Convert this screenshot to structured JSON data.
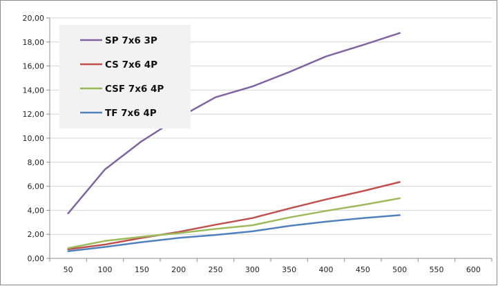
{
  "chart_data": {
    "type": "line",
    "title": "",
    "xlabel": "",
    "ylabel": "",
    "x": [
      50,
      100,
      150,
      200,
      250,
      300,
      350,
      400,
      450,
      500,
      550,
      600
    ],
    "x_tick_labels": [
      "50",
      "100",
      "150",
      "200",
      "250",
      "300",
      "350",
      "400",
      "450",
      "500",
      "550",
      "600"
    ],
    "y_tick_labels": [
      "0,00",
      "2,00",
      "4,00",
      "6,00",
      "8,00",
      "10,00",
      "12,00",
      "14,00",
      "16,00",
      "18,00",
      "20,00"
    ],
    "ylim": [
      0,
      20
    ],
    "grid": "horizontal",
    "legend_position": "top-left",
    "series": [
      {
        "name": "SP 7x6 3P",
        "color": "#8064A2",
        "values": [
          3.75,
          7.4,
          9.75,
          11.7,
          13.4,
          14.3,
          15.5,
          16.8,
          17.75,
          18.75,
          null,
          null
        ]
      },
      {
        "name": "CS 7x6 4P",
        "color": "#C0504D",
        "values": [
          0.75,
          1.15,
          1.7,
          2.2,
          2.8,
          3.35,
          4.15,
          4.9,
          5.6,
          6.35,
          null,
          null
        ]
      },
      {
        "name": "CSF 7x6 4P",
        "color": "#9BBB59",
        "values": [
          0.85,
          1.45,
          1.8,
          2.1,
          2.45,
          2.75,
          3.4,
          3.95,
          4.45,
          5.0,
          null,
          null
        ]
      },
      {
        "name": "TF 7x6 4P",
        "color": "#4F81BD",
        "values": [
          0.6,
          0.95,
          1.35,
          1.7,
          1.95,
          2.25,
          2.7,
          3.05,
          3.35,
          3.6,
          null,
          null
        ]
      }
    ]
  },
  "colors": {
    "plot_border": "#8c8c8c",
    "grid": "#d4d4d4",
    "legend_background": "#f2f2f2"
  }
}
